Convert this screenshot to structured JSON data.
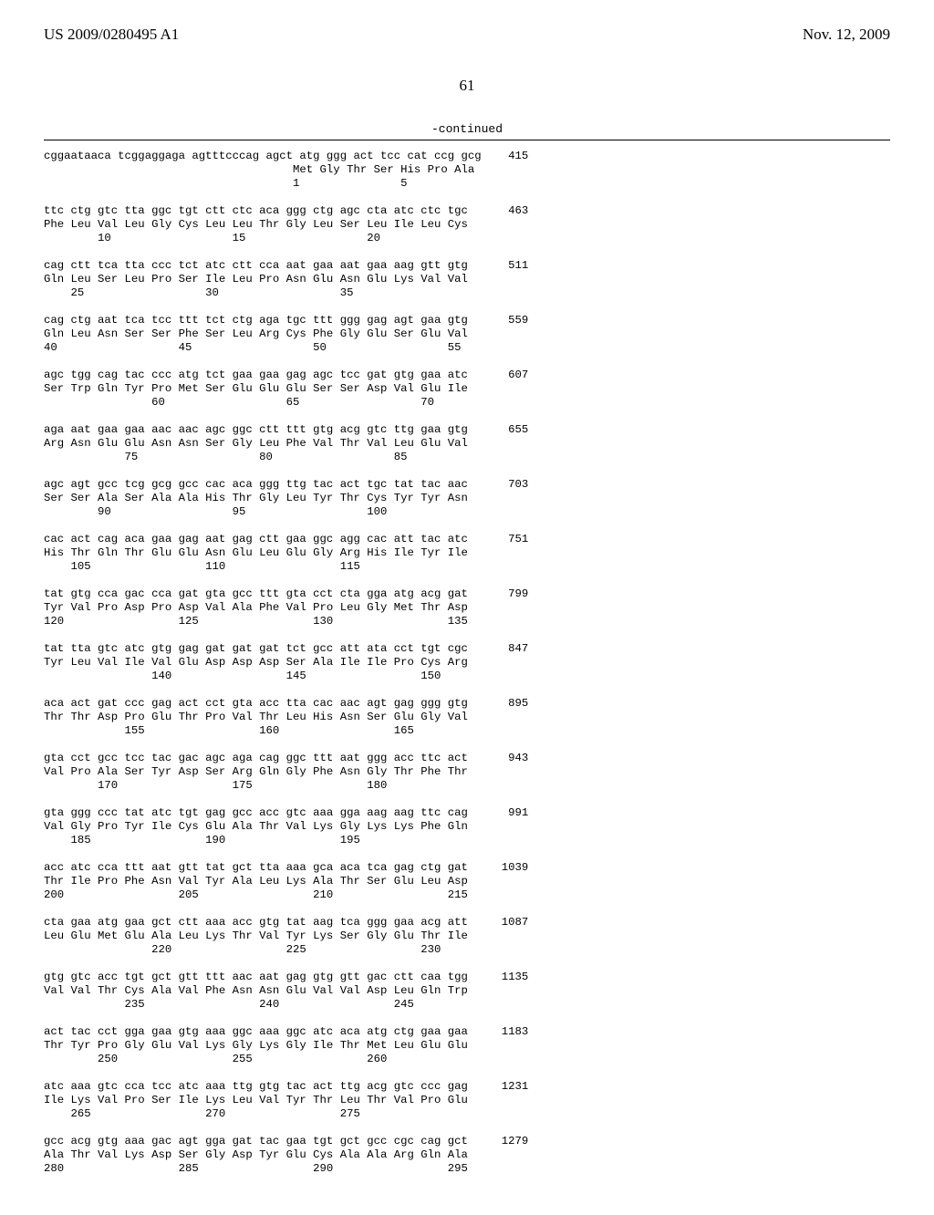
{
  "header": {
    "pubnum": "US 2009/0280495 A1",
    "pubdate": "Nov. 12, 2009"
  },
  "pagenum": "61",
  "continued": "-continued",
  "rows": [
    {
      "nuc": "cggaataaca tcggaggaga agtttcccag agct atg ggg act tcc cat ccg gcg",
      "pos": "415",
      "aa": "                                     Met Gly Thr Ser His Pro Ala",
      "num": "                                     1               5"
    },
    {
      "nuc": "ttc ctg gtc tta ggc tgt ctt ctc aca ggg ctg agc cta atc ctc tgc",
      "pos": "463",
      "aa": "Phe Leu Val Leu Gly Cys Leu Leu Thr Gly Leu Ser Leu Ile Leu Cys",
      "num": "        10                  15                  20"
    },
    {
      "nuc": "cag ctt tca tta ccc tct atc ctt cca aat gaa aat gaa aag gtt gtg",
      "pos": "511",
      "aa": "Gln Leu Ser Leu Pro Ser Ile Leu Pro Asn Glu Asn Glu Lys Val Val",
      "num": "    25                  30                  35"
    },
    {
      "nuc": "cag ctg aat tca tcc ttt tct ctg aga tgc ttt ggg gag agt gaa gtg",
      "pos": "559",
      "aa": "Gln Leu Asn Ser Ser Phe Ser Leu Arg Cys Phe Gly Glu Ser Glu Val",
      "num": "40                  45                  50                  55"
    },
    {
      "nuc": "agc tgg cag tac ccc atg tct gaa gaa gag agc tcc gat gtg gaa atc",
      "pos": "607",
      "aa": "Ser Trp Gln Tyr Pro Met Ser Glu Glu Glu Ser Ser Asp Val Glu Ile",
      "num": "                60                  65                  70"
    },
    {
      "nuc": "aga aat gaa gaa aac aac agc ggc ctt ttt gtg acg gtc ttg gaa gtg",
      "pos": "655",
      "aa": "Arg Asn Glu Glu Asn Asn Ser Gly Leu Phe Val Thr Val Leu Glu Val",
      "num": "            75                  80                  85"
    },
    {
      "nuc": "agc agt gcc tcg gcg gcc cac aca ggg ttg tac act tgc tat tac aac",
      "pos": "703",
      "aa": "Ser Ser Ala Ser Ala Ala His Thr Gly Leu Tyr Thr Cys Tyr Tyr Asn",
      "num": "        90                  95                  100"
    },
    {
      "nuc": "cac act cag aca gaa gag aat gag ctt gaa ggc agg cac att tac atc",
      "pos": "751",
      "aa": "His Thr Gln Thr Glu Glu Asn Glu Leu Glu Gly Arg His Ile Tyr Ile",
      "num": "    105                 110                 115"
    },
    {
      "nuc": "tat gtg cca gac cca gat gta gcc ttt gta cct cta gga atg acg gat",
      "pos": "799",
      "aa": "Tyr Val Pro Asp Pro Asp Val Ala Phe Val Pro Leu Gly Met Thr Asp",
      "num": "120                 125                 130                 135"
    },
    {
      "nuc": "tat tta gtc atc gtg gag gat gat gat tct gcc att ata cct tgt cgc",
      "pos": "847",
      "aa": "Tyr Leu Val Ile Val Glu Asp Asp Asp Ser Ala Ile Ile Pro Cys Arg",
      "num": "                140                 145                 150"
    },
    {
      "nuc": "aca act gat ccc gag act cct gta acc tta cac aac agt gag ggg gtg",
      "pos": "895",
      "aa": "Thr Thr Asp Pro Glu Thr Pro Val Thr Leu His Asn Ser Glu Gly Val",
      "num": "            155                 160                 165"
    },
    {
      "nuc": "gta cct gcc tcc tac gac agc aga cag ggc ttt aat ggg acc ttc act",
      "pos": "943",
      "aa": "Val Pro Ala Ser Tyr Asp Ser Arg Gln Gly Phe Asn Gly Thr Phe Thr",
      "num": "        170                 175                 180"
    },
    {
      "nuc": "gta ggg ccc tat atc tgt gag gcc acc gtc aaa gga aag aag ttc cag",
      "pos": "991",
      "aa": "Val Gly Pro Tyr Ile Cys Glu Ala Thr Val Lys Gly Lys Lys Phe Gln",
      "num": "    185                 190                 195"
    },
    {
      "nuc": "acc atc cca ttt aat gtt tat gct tta aaa gca aca tca gag ctg gat",
      "pos": "1039",
      "aa": "Thr Ile Pro Phe Asn Val Tyr Ala Leu Lys Ala Thr Ser Glu Leu Asp",
      "num": "200                 205                 210                 215"
    },
    {
      "nuc": "cta gaa atg gaa gct ctt aaa acc gtg tat aag tca ggg gaa acg att",
      "pos": "1087",
      "aa": "Leu Glu Met Glu Ala Leu Lys Thr Val Tyr Lys Ser Gly Glu Thr Ile",
      "num": "                220                 225                 230"
    },
    {
      "nuc": "gtg gtc acc tgt gct gtt ttt aac aat gag gtg gtt gac ctt caa tgg",
      "pos": "1135",
      "aa": "Val Val Thr Cys Ala Val Phe Asn Asn Glu Val Val Asp Leu Gln Trp",
      "num": "            235                 240                 245"
    },
    {
      "nuc": "act tac cct gga gaa gtg aaa ggc aaa ggc atc aca atg ctg gaa gaa",
      "pos": "1183",
      "aa": "Thr Tyr Pro Gly Glu Val Lys Gly Lys Gly Ile Thr Met Leu Glu Glu",
      "num": "        250                 255                 260"
    },
    {
      "nuc": "atc aaa gtc cca tcc atc aaa ttg gtg tac act ttg acg gtc ccc gag",
      "pos": "1231",
      "aa": "Ile Lys Val Pro Ser Ile Lys Leu Val Tyr Thr Leu Thr Val Pro Glu",
      "num": "    265                 270                 275"
    },
    {
      "nuc": "gcc acg gtg aaa gac agt gga gat tac gaa tgt gct gcc cgc cag gct",
      "pos": "1279",
      "aa": "Ala Thr Val Lys Asp Ser Gly Asp Tyr Glu Cys Ala Ala Arg Gln Ala",
      "num": "280                 285                 290                 295"
    }
  ]
}
